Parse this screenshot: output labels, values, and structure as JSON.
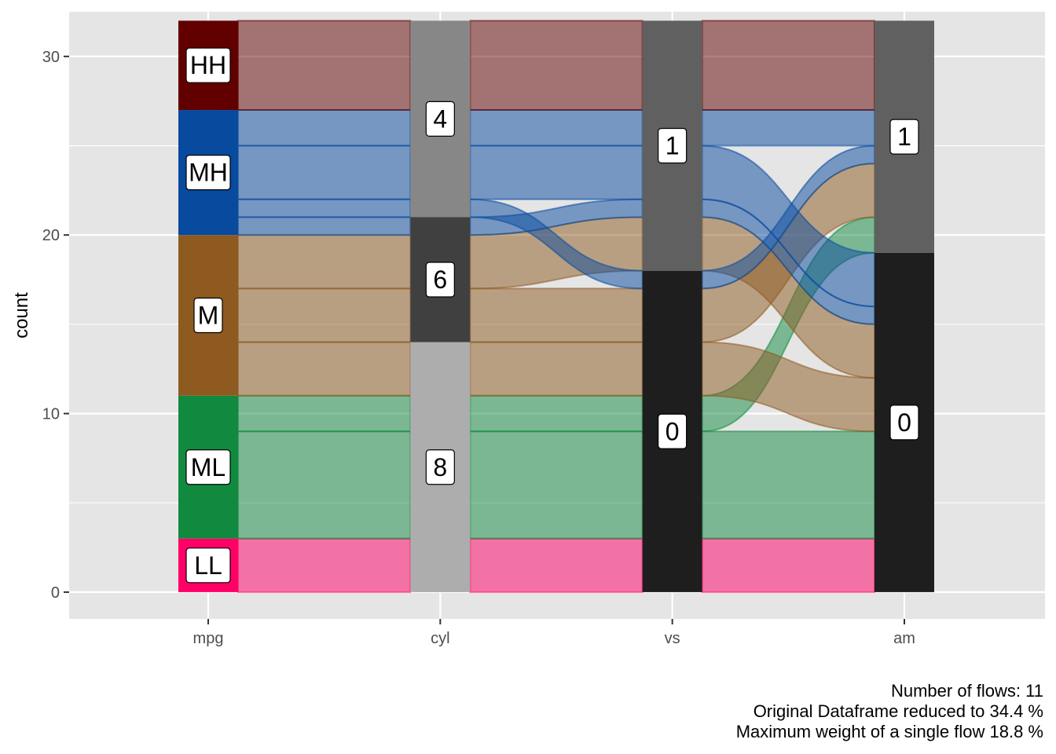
{
  "chart_data": {
    "type": "alluvial",
    "ylabel": "count",
    "xlabel": "",
    "ylim": [
      -1.5,
      32.5
    ],
    "yticks": [
      0,
      10,
      20,
      30
    ],
    "axes": [
      "mpg",
      "cyl",
      "vs",
      "am"
    ],
    "strata": {
      "mpg": [
        {
          "label": "LL",
          "count": 3,
          "color": "#FF0066"
        },
        {
          "label": "ML",
          "count": 8,
          "color": "#118A3F"
        },
        {
          "label": "M",
          "count": 9,
          "color": "#8E5A20"
        },
        {
          "label": "MH",
          "count": 7,
          "color": "#074A9E"
        },
        {
          "label": "HH",
          "count": 5,
          "color": "#620000"
        }
      ],
      "cyl": [
        {
          "label": "8",
          "count": 14,
          "color": "#ADADAD"
        },
        {
          "label": "6",
          "count": 7,
          "color": "#404040"
        },
        {
          "label": "4",
          "count": 11,
          "color": "#878787"
        }
      ],
      "vs": [
        {
          "label": "0",
          "count": 18,
          "color": "#1E1E1E"
        },
        {
          "label": "1",
          "count": 14,
          "color": "#606060"
        }
      ],
      "am": [
        {
          "label": "0",
          "count": 19,
          "color": "#1E1E1E"
        },
        {
          "label": "1",
          "count": 13,
          "color": "#606060"
        }
      ]
    },
    "flows": [
      {
        "mpg": "LL",
        "cyl": "8",
        "vs": "0",
        "am": "0",
        "count": 3
      },
      {
        "mpg": "ML",
        "cyl": "8",
        "vs": "0",
        "am": "0",
        "count": 6
      },
      {
        "mpg": "ML",
        "cyl": "8",
        "vs": "0",
        "am": "1",
        "count": 2
      },
      {
        "mpg": "M",
        "cyl": "8",
        "vs": "0",
        "am": "0",
        "count": 3
      },
      {
        "mpg": "M",
        "cyl": "6",
        "vs": "0",
        "am": "1",
        "count": 3
      },
      {
        "mpg": "M",
        "cyl": "6",
        "vs": "1",
        "am": "0",
        "count": 3
      },
      {
        "mpg": "MH",
        "cyl": "6",
        "vs": "1",
        "am": "0",
        "count": 1
      },
      {
        "mpg": "MH",
        "cyl": "4",
        "vs": "0",
        "am": "1",
        "count": 1
      },
      {
        "mpg": "MH",
        "cyl": "4",
        "vs": "1",
        "am": "0",
        "count": 3
      },
      {
        "mpg": "MH",
        "cyl": "4",
        "vs": "1",
        "am": "1",
        "count": 2
      },
      {
        "mpg": "HH",
        "cyl": "4",
        "vs": "1",
        "am": "1",
        "count": 5
      }
    ],
    "grid": true,
    "legend": "none"
  },
  "caption": {
    "lines": [
      "Number of flows: 11",
      "Original Dataframe reduced to 34.4 %",
      "Maximum weight of a single flow 18.8 %"
    ]
  }
}
